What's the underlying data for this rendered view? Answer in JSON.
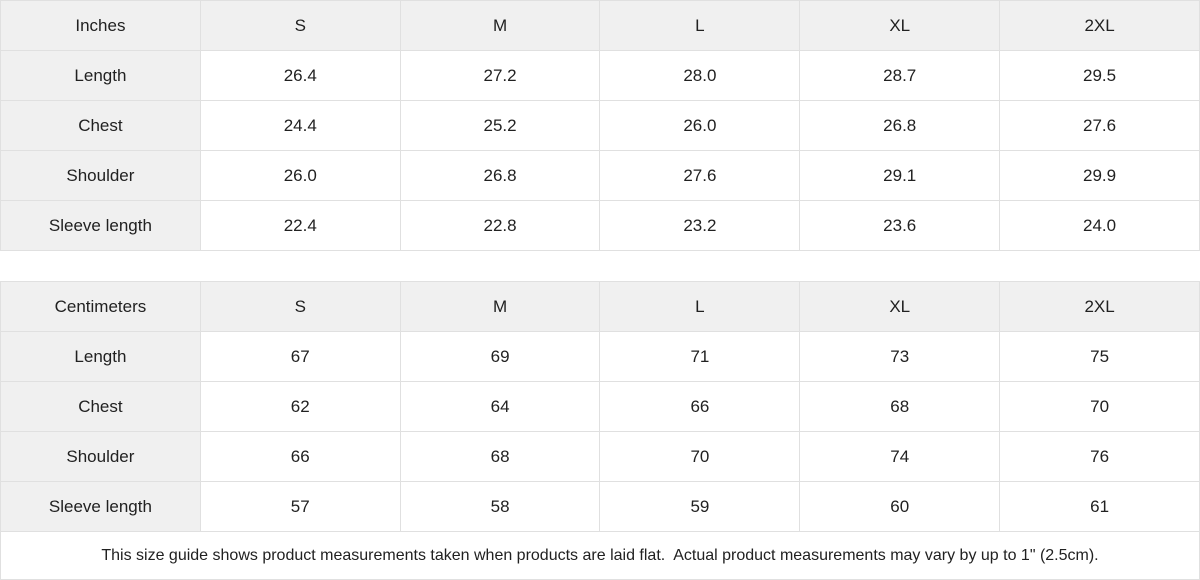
{
  "theme": {
    "header_cell_bg": "#f0f0f0",
    "grid_border_color": "#e0e0e0",
    "text_color": "#212121",
    "page_bg": "#ffffff"
  },
  "size_chart": {
    "columns": [
      "S",
      "M",
      "L",
      "XL",
      "2XL"
    ],
    "inches": {
      "unit_label": "Inches",
      "rows": [
        {
          "label": "Length",
          "values": [
            "26.4",
            "27.2",
            "28.0",
            "28.7",
            "29.5"
          ]
        },
        {
          "label": "Chest",
          "values": [
            "24.4",
            "25.2",
            "26.0",
            "26.8",
            "27.6"
          ]
        },
        {
          "label": "Shoulder",
          "values": [
            "26.0",
            "26.8",
            "27.6",
            "29.1",
            "29.9"
          ]
        },
        {
          "label": "Sleeve length",
          "values": [
            "22.4",
            "22.8",
            "23.2",
            "23.6",
            "24.0"
          ]
        }
      ]
    },
    "centimeters": {
      "unit_label": "Centimeters",
      "rows": [
        {
          "label": "Length",
          "values": [
            "67",
            "69",
            "71",
            "73",
            "75"
          ]
        },
        {
          "label": "Chest",
          "values": [
            "62",
            "64",
            "66",
            "68",
            "70"
          ]
        },
        {
          "label": "Shoulder",
          "values": [
            "66",
            "68",
            "70",
            "74",
            "76"
          ]
        },
        {
          "label": "Sleeve length",
          "values": [
            "57",
            "58",
            "59",
            "60",
            "61"
          ]
        }
      ]
    },
    "footnote": "This size guide shows product measurements taken when products are laid flat.  Actual product measurements may vary by up to 1\" (2.5cm)."
  }
}
